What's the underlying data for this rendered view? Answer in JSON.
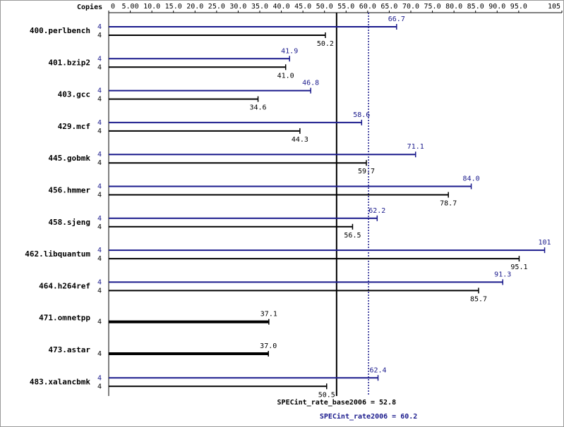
{
  "chart_data": {
    "type": "spec-bar",
    "copies_label": "Copies",
    "categories": [
      "400.perlbench",
      "401.bzip2",
      "403.gcc",
      "429.mcf",
      "445.gobmk",
      "456.hmmer",
      "458.sjeng",
      "462.libquantum",
      "464.h264ref",
      "471.omnetpp",
      "473.astar",
      "483.xalancbmk"
    ],
    "series": [
      {
        "name": "SPECint_rate2006",
        "color": "#1a1a8c",
        "copies": [
          4,
          4,
          4,
          4,
          4,
          4,
          4,
          4,
          4,
          null,
          null,
          4
        ],
        "values": [
          66.7,
          41.9,
          46.8,
          58.6,
          71.1,
          84.0,
          62.2,
          101,
          91.3,
          null,
          null,
          62.4
        ],
        "value_labels": [
          "66.7",
          "41.9",
          "46.8",
          "58.6",
          "71.1",
          "84.0",
          "62.2",
          "101",
          "91.3",
          null,
          null,
          "62.4"
        ]
      },
      {
        "name": "SPECint_rate_base2006",
        "color": "#000000",
        "copies": [
          4,
          4,
          4,
          4,
          4,
          4,
          4,
          4,
          4,
          4,
          4,
          4
        ],
        "values": [
          50.2,
          41.0,
          34.6,
          44.3,
          59.7,
          78.7,
          56.5,
          95.1,
          85.7,
          37.1,
          37.0,
          50.5
        ],
        "value_labels": [
          "50.2",
          "41.0",
          "34.6",
          "44.3",
          "59.7",
          "78.7",
          "56.5",
          "95.1",
          "85.7",
          "37.1",
          "37.0",
          "50.5"
        ]
      }
    ],
    "xlim": [
      0,
      105
    ],
    "xticks": [
      0,
      {
        "value": 5,
        "label": "5.00"
      },
      {
        "value": 10,
        "label": "10.0"
      },
      {
        "value": 15,
        "label": "15.0"
      },
      {
        "value": 20,
        "label": "20.0"
      },
      {
        "value": 25,
        "label": "25.0"
      },
      {
        "value": 30,
        "label": "30.0"
      },
      {
        "value": 35,
        "label": "35.0"
      },
      {
        "value": 40,
        "label": "40.0"
      },
      {
        "value": 45,
        "label": "45.0"
      },
      {
        "value": 50,
        "label": "50.0"
      },
      {
        "value": 55,
        "label": "55.0"
      },
      {
        "value": 60,
        "label": "60.0"
      },
      {
        "value": 65,
        "label": "65.0"
      },
      {
        "value": 70,
        "label": "70.0"
      },
      {
        "value": 75,
        "label": "75.0"
      },
      {
        "value": 80,
        "label": "80.0"
      },
      {
        "value": 85,
        "label": "85.0"
      },
      {
        "value": 90,
        "label": "90.0"
      },
      {
        "value": 95,
        "label": "95.0"
      },
      105
    ],
    "reference_lines": [
      {
        "label": "SPECint_rate_base2006 = 52.8",
        "value": 52.8,
        "color": "#000000",
        "style": "solid"
      },
      {
        "label": "SPECint_rate2006 = 60.2",
        "value": 60.2,
        "color": "#1a1a8c",
        "style": "dotted"
      }
    ]
  }
}
